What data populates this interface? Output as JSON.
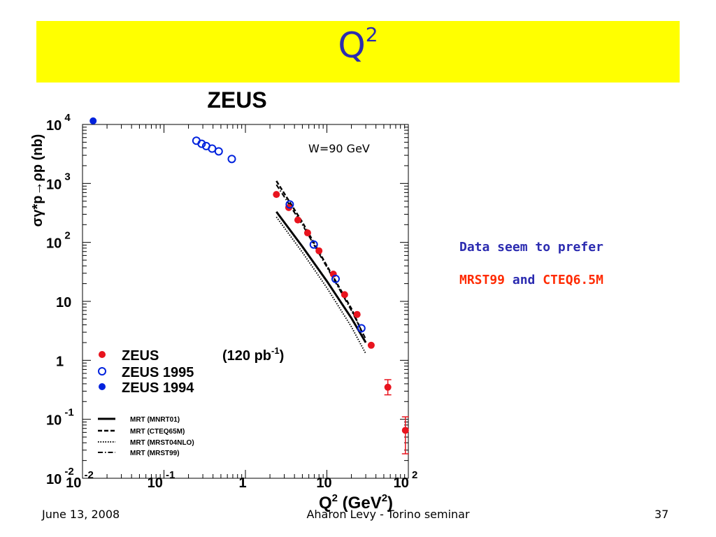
{
  "slide": {
    "title": "Q",
    "title_sup": "2",
    "note_line1": "Data seem to prefer",
    "note_mrst": "MRST99",
    "note_and": " and ",
    "note_cteq": "CTEQ6.5M",
    "footer_date": "June 13, 2008",
    "footer_center": "Aharon Levy - Torino seminar",
    "footer_page": "37"
  },
  "colors": {
    "title_band": "#ffff00",
    "title_text": "#2b2bb0",
    "zeus_red": "#e8141e",
    "zeus_blue": "#0022dd",
    "note_blue": "#2b2bb0",
    "note_red": "#ff2a00"
  },
  "chart_data": {
    "type": "scatter",
    "title": "ZEUS",
    "annotation": "W=90 GeV",
    "xlabel": "Q",
    "xlabel_sup": "2",
    "xlabel_unit_pre": " (GeV",
    "xlabel_unit_sup": "2",
    "xlabel_unit_post": ")",
    "ylabel": "σγ*p→ρp (nb)",
    "xscale": "log",
    "yscale": "log",
    "xlim": [
      0.01,
      100
    ],
    "ylim": [
      0.01,
      10000
    ],
    "x_ticks": [
      {
        "base": "10",
        "exp": "-2",
        "value": 0.01
      },
      {
        "base": "10",
        "exp": "-1",
        "value": 0.1
      },
      {
        "base": "1",
        "exp": "",
        "value": 1
      },
      {
        "base": "10",
        "exp": "",
        "value": 10
      },
      {
        "base": "10",
        "exp": "2",
        "value": 100
      }
    ],
    "y_ticks": [
      {
        "base": "10",
        "exp": "4",
        "value": 10000
      },
      {
        "base": "10",
        "exp": "3",
        "value": 1000
      },
      {
        "base": "10",
        "exp": "2",
        "value": 100
      },
      {
        "base": "10",
        "exp": "",
        "value": 10
      },
      {
        "base": "1",
        "exp": "",
        "value": 1
      },
      {
        "base": "10",
        "exp": "-1",
        "value": 0.1
      },
      {
        "base": "10",
        "exp": "-2",
        "value": 0.01
      }
    ],
    "series": [
      {
        "name": "ZEUS",
        "marker": "filled-circle",
        "color": "#e8141e",
        "points": [
          {
            "x": 2.4,
            "y": 650
          },
          {
            "x": 3.4,
            "y": 390
          },
          {
            "x": 4.4,
            "y": 240
          },
          {
            "x": 5.8,
            "y": 145
          },
          {
            "x": 8.0,
            "y": 72
          },
          {
            "x": 12.0,
            "y": 29
          },
          {
            "x": 16.5,
            "y": 13
          },
          {
            "x": 23.5,
            "y": 6.0
          },
          {
            "x": 35.0,
            "y": 1.8
          },
          {
            "x": 56.0,
            "y": 0.35,
            "ylo": 0.26,
            "yhi": 0.47
          },
          {
            "x": 92.0,
            "y": 0.065,
            "ylo": 0.026,
            "yhi": 0.11
          }
        ]
      },
      {
        "name": "ZEUS 1995",
        "marker": "open-circle",
        "color": "#0022dd",
        "points": [
          {
            "x": 0.25,
            "y": 5300
          },
          {
            "x": 0.29,
            "y": 4700
          },
          {
            "x": 0.33,
            "y": 4300
          },
          {
            "x": 0.39,
            "y": 3900
          },
          {
            "x": 0.47,
            "y": 3500
          },
          {
            "x": 0.68,
            "y": 2600
          },
          {
            "x": 3.5,
            "y": 440
          },
          {
            "x": 6.9,
            "y": 92
          },
          {
            "x": 12.8,
            "y": 24
          },
          {
            "x": 26.5,
            "y": 3.5
          }
        ]
      },
      {
        "name": "ZEUS 1994",
        "marker": "filled-circle",
        "color": "#0022dd",
        "points": [
          {
            "x": 0.0135,
            "y": 11500
          }
        ]
      }
    ],
    "curves": [
      {
        "name": "MRT (MNRT01)",
        "dash": "solid",
        "points": [
          [
            2.4,
            330
          ],
          [
            5,
            85
          ],
          [
            10,
            22
          ],
          [
            20,
            5.2
          ],
          [
            30,
            2.0
          ]
        ]
      },
      {
        "name": "MRT (CTEQ65M)",
        "dash": "dashed",
        "points": [
          [
            2.4,
            1100
          ],
          [
            5,
            220
          ],
          [
            10,
            40
          ],
          [
            20,
            7.5
          ],
          [
            28,
            2.7
          ]
        ]
      },
      {
        "name": "MRT (MRST04NLO)",
        "dash": "dotted",
        "points": [
          [
            2.4,
            270
          ],
          [
            5,
            68
          ],
          [
            10,
            17
          ],
          [
            20,
            3.7
          ],
          [
            30,
            1.3
          ]
        ]
      },
      {
        "name": "MRT (MRST99)",
        "dash": "dashdot",
        "points": [
          [
            2.4,
            950
          ],
          [
            5,
            200
          ],
          [
            10,
            38
          ],
          [
            20,
            7.0
          ],
          [
            30,
            2.3
          ]
        ]
      }
    ],
    "legend_points": [
      {
        "label": "ZEUS",
        "extra": "(120 pb",
        "extra_sup": "-1",
        "extra_post": ")"
      },
      {
        "label": "ZEUS 1995"
      },
      {
        "label": "ZEUS 1994"
      }
    ],
    "legend_curves": [
      "MRT (MNRT01)",
      "MRT (CTEQ65M)",
      "MRT (MRST04NLO)",
      "MRT (MRST99)"
    ],
    "legend_position": "bottom-left"
  }
}
